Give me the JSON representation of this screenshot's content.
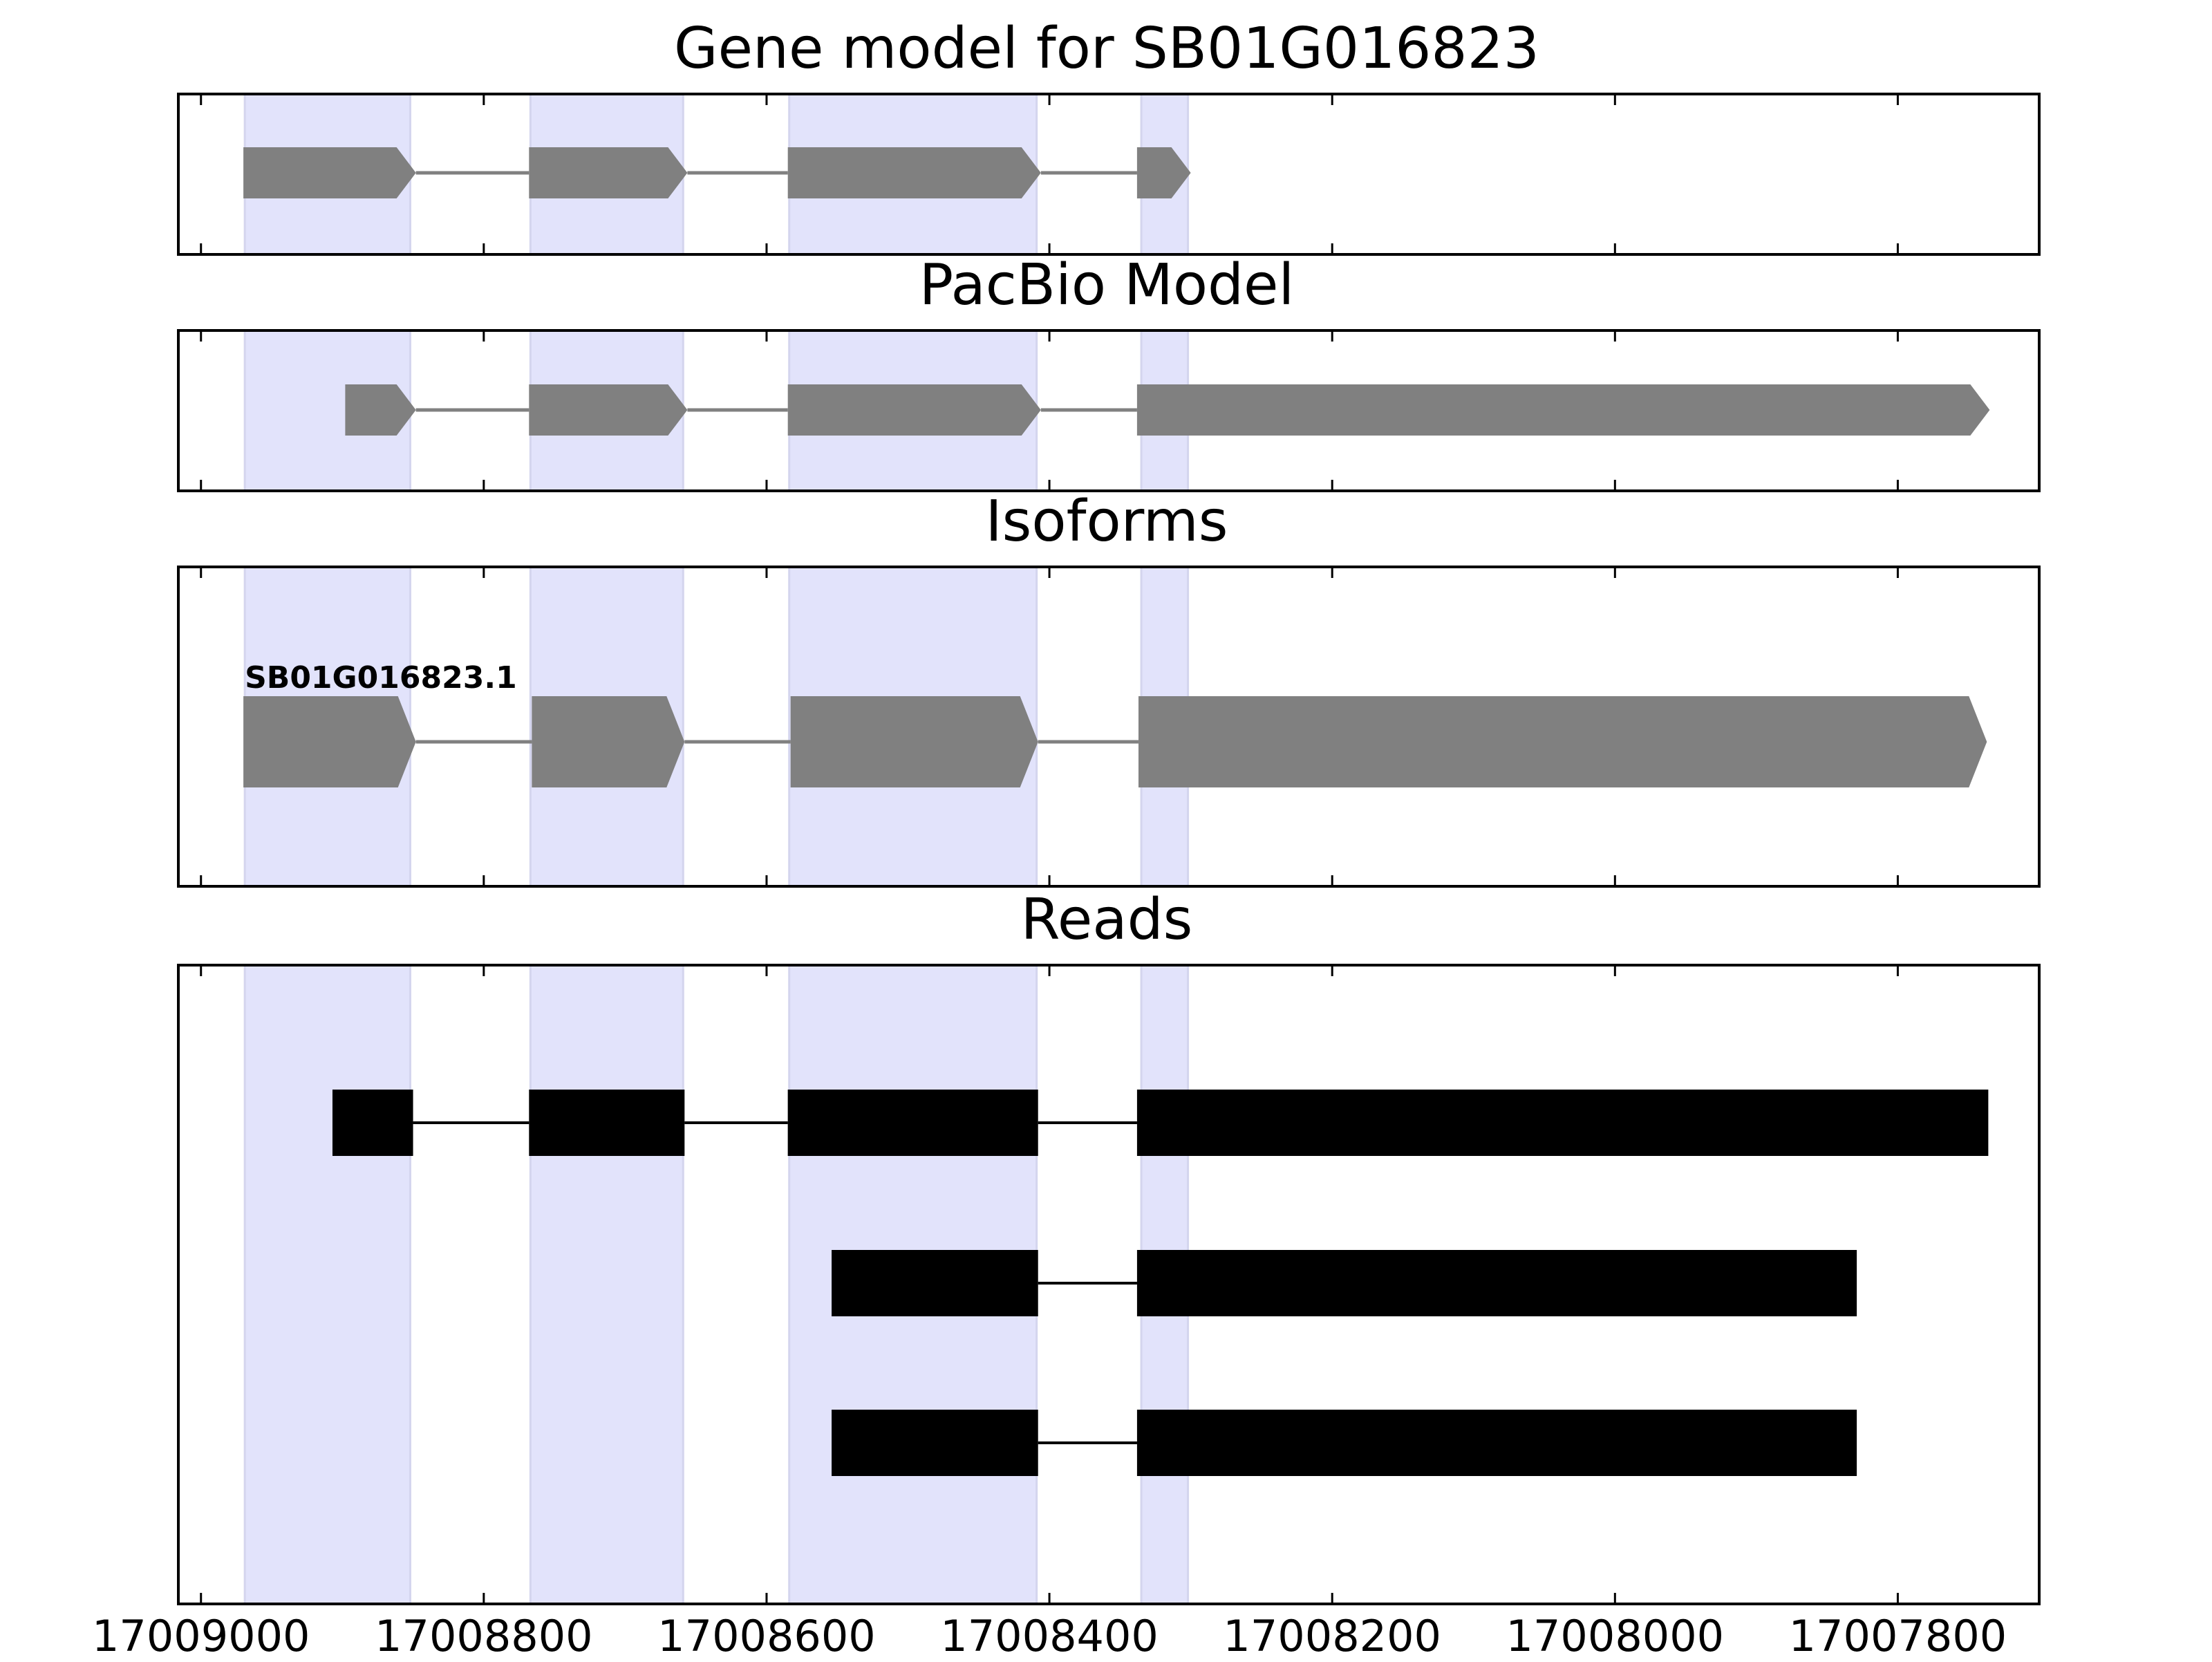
{
  "chart_data": {
    "type": "gene-structure",
    "x_reversed": true,
    "xlim": [
      17009016,
      17007700
    ],
    "x_ticks": [
      17009000,
      17008800,
      17008600,
      17008400,
      17008200,
      17008000,
      17007800
    ],
    "x_tick_labels": [
      "17009000",
      "17008800",
      "17008600",
      "17008400",
      "17008200",
      "17008000",
      "17007800"
    ],
    "highlight_color": "#e2e3fb",
    "exon_color": "#808080",
    "read_color": "#000000",
    "highlight_regions": [
      [
        17008969,
        17008852
      ],
      [
        17008767,
        17008659
      ],
      [
        17008584,
        17008409
      ],
      [
        17008335,
        17008302
      ]
    ],
    "panels": [
      {
        "title": "Gene model for SB01G016823",
        "kind": "model",
        "tracks": [
          {
            "label": "",
            "exons": [
              [
                17008970,
                17008848
              ],
              [
                17008768,
                17008656
              ],
              [
                17008585,
                17008406
              ],
              [
                17008338,
                17008300
              ]
            ]
          }
        ]
      },
      {
        "title": "PacBio Model",
        "kind": "model",
        "tracks": [
          {
            "label": "",
            "exons": [
              [
                17008898,
                17008848
              ],
              [
                17008768,
                17008656
              ],
              [
                17008585,
                17008406
              ],
              [
                17008338,
                17007735
              ]
            ]
          }
        ]
      },
      {
        "title": "Isoforms",
        "kind": "isoform",
        "tracks": [
          {
            "label": "SB01G016823.1",
            "exons": [
              [
                17008970,
                17008848
              ],
              [
                17008766,
                17008658
              ],
              [
                17008583,
                17008408
              ],
              [
                17008337,
                17007737
              ]
            ]
          }
        ]
      },
      {
        "title": "Reads",
        "kind": "reads",
        "tracks": [
          {
            "label": "",
            "exons": [
              [
                17008907,
                17008850
              ],
              [
                17008768,
                17008658
              ],
              [
                17008585,
                17008408
              ],
              [
                17008338,
                17007736
              ]
            ]
          },
          {
            "label": "",
            "exons": [
              [
                17008554,
                17008408
              ],
              [
                17008338,
                17007829
              ]
            ]
          },
          {
            "label": "",
            "exons": [
              [
                17008554,
                17008408
              ],
              [
                17008338,
                17007829
              ]
            ]
          }
        ]
      }
    ]
  }
}
